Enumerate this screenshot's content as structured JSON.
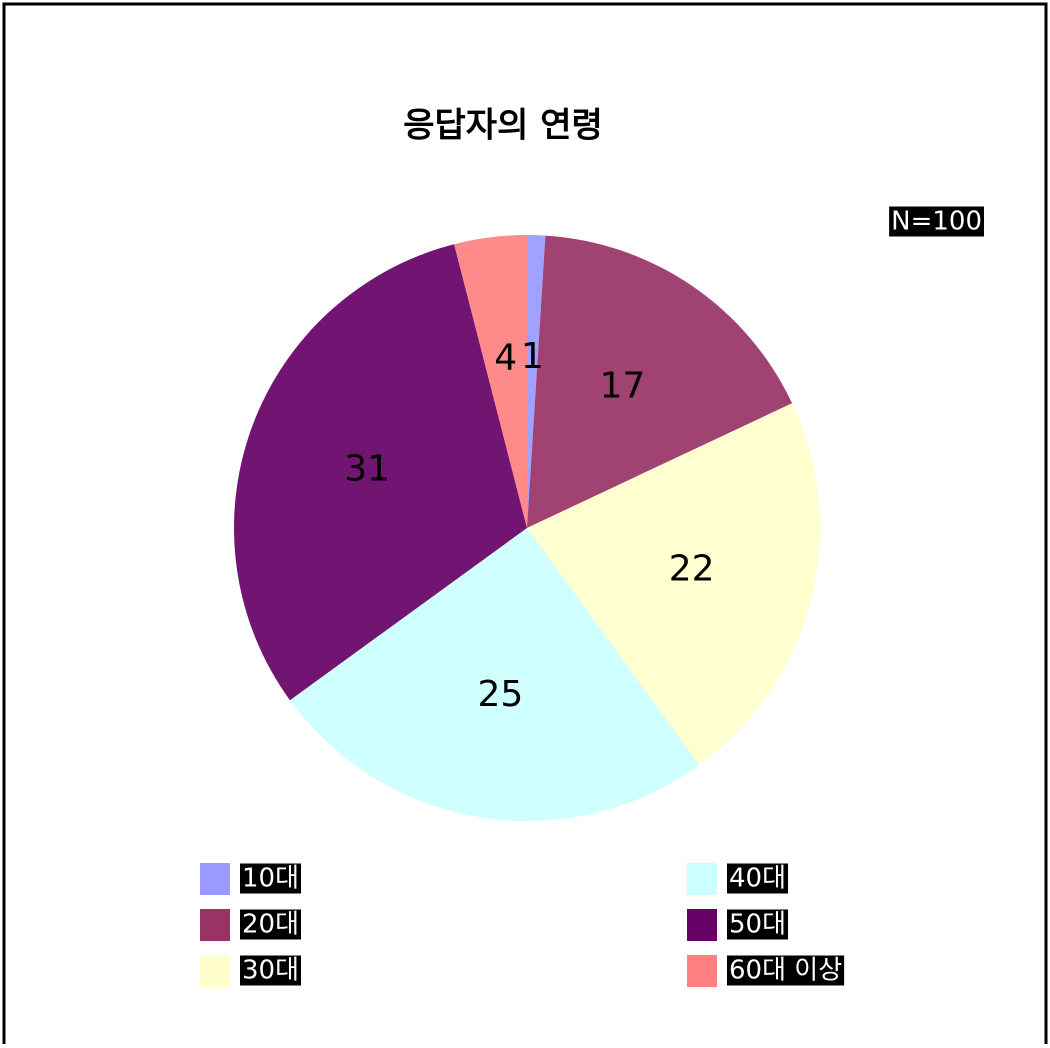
{
  "chart_data": {
    "type": "pie",
    "title": "응답자의 연령",
    "annotation": "N=100",
    "categories": [
      "10대",
      "20대",
      "30대",
      "40대",
      "50대",
      "60대 이상"
    ],
    "values": [
      1,
      17,
      22,
      25,
      31,
      4
    ],
    "colors": [
      "#9999ff",
      "#993366",
      "#ffffcc",
      "#ccffff",
      "#660066",
      "#ff8080"
    ],
    "legend": "bottom"
  }
}
